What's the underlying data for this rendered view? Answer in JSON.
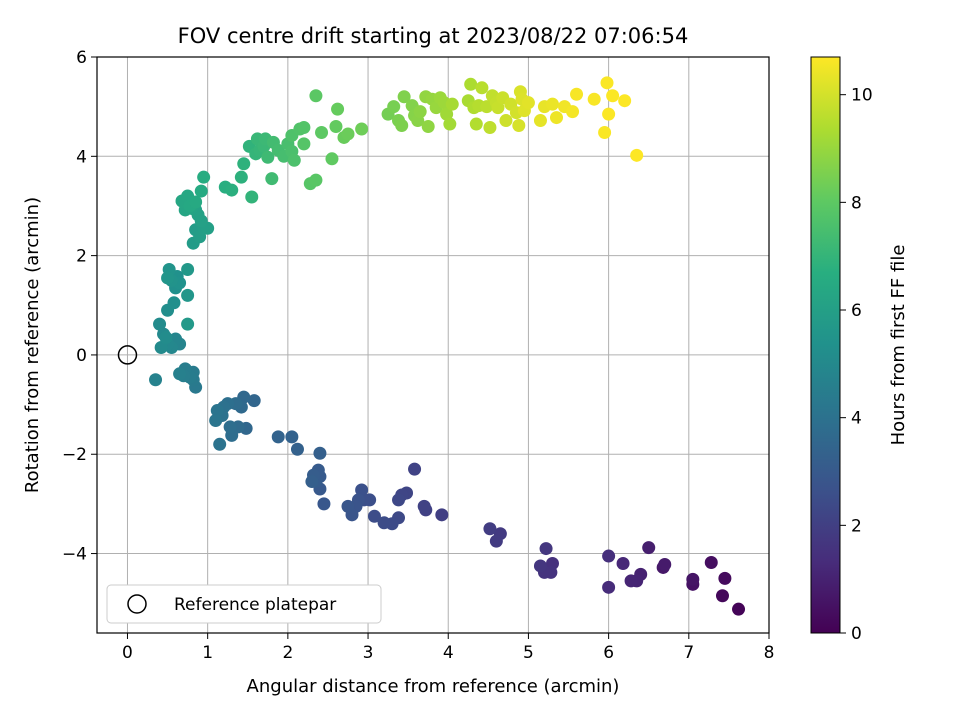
{
  "chart_data": {
    "type": "scatter",
    "title": "FOV centre drift starting at 2023/08/22 07:06:54",
    "xlabel": "Angular distance from reference (arcmin)",
    "ylabel": "Rotation from reference (arcmin)",
    "xlim": [
      -0.38,
      8.0
    ],
    "ylim": [
      -5.6,
      6.0
    ],
    "xticks": [
      0,
      1,
      2,
      3,
      4,
      5,
      6,
      7,
      8
    ],
    "yticks": [
      -4,
      -2,
      0,
      2,
      4,
      6
    ],
    "xtick_labels": [
      "0",
      "1",
      "2",
      "3",
      "4",
      "5",
      "6",
      "7",
      "8"
    ],
    "ytick_labels": [
      "−4",
      "−2",
      "0",
      "2",
      "4",
      "6"
    ],
    "grid": true,
    "legend": {
      "placement": "lower-left",
      "entries": [
        "Reference platepar"
      ]
    },
    "reference_point": {
      "x": 0,
      "y": 0
    },
    "colorbar": {
      "label": "Hours from first FF file",
      "range": [
        0,
        10.7
      ],
      "ticks": [
        0,
        2,
        4,
        6,
        8,
        10
      ],
      "tick_labels": [
        "0",
        "2",
        "4",
        "6",
        "8",
        "10"
      ],
      "colormap": "viridis"
    },
    "points": [
      [
        7.62,
        -5.12,
        0.1
      ],
      [
        7.42,
        -4.85,
        0.2
      ],
      [
        7.45,
        -4.5,
        0.3
      ],
      [
        7.28,
        -4.18,
        0.4
      ],
      [
        7.05,
        -4.62,
        0.5
      ],
      [
        7.05,
        -4.52,
        0.6
      ],
      [
        6.68,
        -4.28,
        0.7
      ],
      [
        6.7,
        -4.22,
        0.8
      ],
      [
        6.5,
        -3.88,
        0.9
      ],
      [
        6.4,
        -4.42,
        1.0
      ],
      [
        6.35,
        -4.55,
        1.05
      ],
      [
        6.28,
        -4.55,
        1.1
      ],
      [
        6.18,
        -4.2,
        1.2
      ],
      [
        6.0,
        -4.68,
        1.3
      ],
      [
        6.0,
        -4.05,
        1.4
      ],
      [
        5.3,
        -4.2,
        1.5
      ],
      [
        5.28,
        -4.38,
        1.55
      ],
      [
        5.2,
        -4.38,
        1.6
      ],
      [
        5.15,
        -4.25,
        1.65
      ],
      [
        5.22,
        -3.9,
        1.7
      ],
      [
        4.65,
        -3.6,
        1.8
      ],
      [
        4.6,
        -3.75,
        1.85
      ],
      [
        4.52,
        -3.5,
        1.9
      ],
      [
        3.92,
        -3.22,
        2.0
      ],
      [
        3.72,
        -3.12,
        2.05
      ],
      [
        3.7,
        -3.05,
        2.1
      ],
      [
        3.58,
        -2.3,
        2.15
      ],
      [
        3.48,
        -2.78,
        2.2
      ],
      [
        3.42,
        -2.82,
        2.25
      ],
      [
        3.38,
        -2.92,
        2.3
      ],
      [
        3.38,
        -3.28,
        2.35
      ],
      [
        3.3,
        -3.4,
        2.4
      ],
      [
        3.2,
        -3.38,
        2.45
      ],
      [
        3.08,
        -3.25,
        2.5
      ],
      [
        3.02,
        -2.92,
        2.55
      ],
      [
        2.95,
        -2.92,
        2.6
      ],
      [
        2.92,
        -2.72,
        2.65
      ],
      [
        2.88,
        -2.92,
        2.7
      ],
      [
        2.85,
        -3.05,
        2.75
      ],
      [
        2.8,
        -3.22,
        2.8
      ],
      [
        2.75,
        -3.05,
        2.85
      ],
      [
        2.45,
        -3.0,
        2.9
      ],
      [
        2.4,
        -2.7,
        2.95
      ],
      [
        2.4,
        -2.45,
        3.0
      ],
      [
        2.38,
        -2.32,
        3.05
      ],
      [
        2.35,
        -2.55,
        3.1
      ],
      [
        2.32,
        -2.42,
        3.15
      ],
      [
        2.3,
        -2.55,
        3.2
      ],
      [
        2.4,
        -1.98,
        3.25
      ],
      [
        2.12,
        -1.9,
        3.3
      ],
      [
        2.05,
        -1.65,
        3.35
      ],
      [
        1.88,
        -1.65,
        3.4
      ],
      [
        1.58,
        -0.92,
        3.5
      ],
      [
        1.48,
        -1.48,
        3.55
      ],
      [
        1.45,
        -0.85,
        3.6
      ],
      [
        1.42,
        -1.05,
        3.65
      ],
      [
        1.38,
        -1.45,
        3.7
      ],
      [
        1.35,
        -0.98,
        3.75
      ],
      [
        1.3,
        -1.62,
        3.8
      ],
      [
        1.28,
        -1.45,
        3.85
      ],
      [
        1.25,
        -0.98,
        3.9
      ],
      [
        1.2,
        -1.05,
        3.95
      ],
      [
        1.18,
        -1.22,
        4.0
      ],
      [
        1.15,
        -1.8,
        4.05
      ],
      [
        1.12,
        -1.12,
        4.1
      ],
      [
        1.1,
        -1.32,
        4.15
      ],
      [
        0.85,
        -0.65,
        4.3
      ],
      [
        0.82,
        -0.5,
        4.35
      ],
      [
        0.82,
        -0.35,
        4.4
      ],
      [
        0.78,
        -0.45,
        4.45
      ],
      [
        0.72,
        -0.28,
        4.5
      ],
      [
        0.7,
        -0.42,
        4.55
      ],
      [
        0.65,
        -0.38,
        4.6
      ],
      [
        0.35,
        -0.5,
        4.7
      ],
      [
        0.65,
        0.22,
        4.8
      ],
      [
        0.6,
        0.32,
        4.85
      ],
      [
        0.55,
        0.15,
        4.9
      ],
      [
        0.5,
        0.22,
        4.95
      ],
      [
        0.45,
        0.42,
        5.0
      ],
      [
        0.42,
        0.15,
        5.05
      ],
      [
        0.4,
        0.62,
        5.1
      ],
      [
        0.48,
        0.35,
        5.15
      ],
      [
        0.5,
        0.9,
        5.2
      ],
      [
        0.58,
        1.05,
        5.25
      ],
      [
        0.6,
        1.35,
        5.3
      ],
      [
        0.62,
        1.58,
        5.35
      ],
      [
        0.65,
        1.45,
        5.4
      ],
      [
        0.55,
        1.5,
        5.45
      ],
      [
        0.52,
        1.72,
        5.5
      ],
      [
        0.5,
        1.55,
        5.55
      ],
      [
        0.75,
        1.2,
        5.6
      ],
      [
        0.75,
        1.72,
        5.65
      ],
      [
        0.75,
        0.62,
        5.7
      ],
      [
        0.82,
        2.25,
        5.8
      ],
      [
        0.85,
        2.52,
        5.85
      ],
      [
        0.9,
        2.38,
        5.9
      ],
      [
        0.95,
        2.55,
        5.95
      ],
      [
        1.0,
        2.55,
        6.0
      ],
      [
        0.92,
        2.7,
        6.05
      ],
      [
        0.88,
        2.82,
        6.1
      ],
      [
        0.85,
        2.92,
        6.15
      ],
      [
        0.8,
        2.95,
        6.2
      ],
      [
        0.72,
        2.92,
        6.25
      ],
      [
        0.68,
        3.1,
        6.3
      ],
      [
        0.75,
        3.2,
        6.35
      ],
      [
        0.78,
        3.0,
        6.4
      ],
      [
        0.85,
        3.08,
        6.45
      ],
      [
        0.92,
        3.3,
        6.5
      ],
      [
        0.95,
        3.58,
        6.6
      ],
      [
        1.22,
        3.38,
        6.7
      ],
      [
        1.3,
        3.32,
        6.75
      ],
      [
        1.42,
        3.58,
        6.8
      ],
      [
        1.45,
        3.85,
        6.85
      ],
      [
        1.52,
        4.2,
        6.9
      ],
      [
        1.55,
        3.18,
        6.95
      ],
      [
        1.6,
        4.05,
        7.0
      ],
      [
        1.65,
        4.12,
        7.05
      ],
      [
        1.62,
        4.35,
        7.1
      ],
      [
        1.7,
        4.2,
        7.15
      ],
      [
        1.72,
        4.35,
        7.2
      ],
      [
        1.75,
        3.98,
        7.25
      ],
      [
        1.8,
        3.55,
        7.3
      ],
      [
        1.82,
        4.28,
        7.35
      ],
      [
        1.88,
        4.12,
        7.4
      ],
      [
        1.95,
        4.0,
        7.45
      ],
      [
        2.0,
        4.25,
        7.5
      ],
      [
        2.05,
        4.1,
        7.55
      ],
      [
        2.08,
        3.92,
        7.6
      ],
      [
        2.05,
        4.42,
        7.65
      ],
      [
        2.15,
        4.55,
        7.7
      ],
      [
        2.2,
        4.58,
        7.75
      ],
      [
        2.2,
        4.25,
        7.8
      ],
      [
        2.28,
        3.45,
        7.85
      ],
      [
        2.35,
        3.52,
        7.9
      ],
      [
        2.35,
        5.22,
        7.95
      ],
      [
        2.42,
        4.48,
        8.0
      ],
      [
        2.55,
        3.95,
        8.05
      ],
      [
        2.6,
        4.6,
        8.1
      ],
      [
        2.62,
        4.95,
        8.15
      ],
      [
        2.7,
        4.38,
        8.2
      ],
      [
        2.75,
        4.45,
        8.25
      ],
      [
        2.92,
        4.55,
        8.3
      ],
      [
        3.25,
        4.85,
        8.4
      ],
      [
        3.32,
        5.0,
        8.45
      ],
      [
        3.38,
        4.72,
        8.5
      ],
      [
        3.42,
        4.62,
        8.55
      ],
      [
        3.45,
        5.2,
        8.6
      ],
      [
        3.55,
        5.02,
        8.65
      ],
      [
        3.58,
        4.82,
        8.7
      ],
      [
        3.62,
        4.72,
        8.75
      ],
      [
        3.65,
        4.9,
        8.8
      ],
      [
        3.75,
        4.6,
        8.85
      ],
      [
        3.72,
        5.2,
        8.9
      ],
      [
        3.8,
        5.15,
        8.95
      ],
      [
        3.85,
        4.98,
        9.0
      ],
      [
        3.9,
        5.18,
        9.05
      ],
      [
        3.95,
        5.08,
        9.1
      ],
      [
        3.98,
        4.85,
        9.15
      ],
      [
        4.02,
        4.65,
        9.2
      ],
      [
        4.05,
        5.05,
        9.25
      ],
      [
        4.25,
        5.12,
        9.3
      ],
      [
        4.28,
        5.45,
        9.35
      ],
      [
        4.32,
        4.98,
        9.4
      ],
      [
        4.35,
        4.65,
        9.45
      ],
      [
        4.38,
        5.02,
        9.5
      ],
      [
        4.42,
        5.38,
        9.55
      ],
      [
        4.48,
        5.0,
        9.6
      ],
      [
        4.52,
        4.58,
        9.65
      ],
      [
        4.55,
        5.22,
        9.7
      ],
      [
        4.6,
        5.08,
        9.75
      ],
      [
        4.62,
        4.98,
        9.8
      ],
      [
        4.68,
        5.18,
        9.85
      ],
      [
        4.72,
        4.72,
        9.9
      ],
      [
        4.78,
        5.05,
        9.95
      ],
      [
        4.85,
        4.88,
        10.0
      ],
      [
        4.88,
        4.62,
        10.05
      ],
      [
        4.9,
        5.3,
        10.1
      ],
      [
        4.92,
        5.15,
        10.15
      ],
      [
        4.95,
        4.92,
        10.2
      ],
      [
        5.0,
        5.08,
        10.25
      ],
      [
        5.15,
        4.72,
        10.3
      ],
      [
        5.2,
        5.0,
        10.35
      ],
      [
        5.3,
        5.05,
        10.4
      ],
      [
        5.35,
        4.78,
        10.45
      ],
      [
        5.45,
        5.0,
        10.5
      ],
      [
        5.55,
        4.9,
        10.55
      ],
      [
        5.6,
        5.25,
        10.6
      ],
      [
        5.82,
        5.15,
        10.62
      ],
      [
        5.95,
        4.48,
        10.64
      ],
      [
        5.98,
        5.48,
        10.65
      ],
      [
        6.0,
        4.85,
        10.66
      ],
      [
        6.05,
        5.22,
        10.67
      ],
      [
        6.2,
        5.12,
        10.68
      ],
      [
        6.35,
        4.02,
        10.7
      ]
    ]
  }
}
